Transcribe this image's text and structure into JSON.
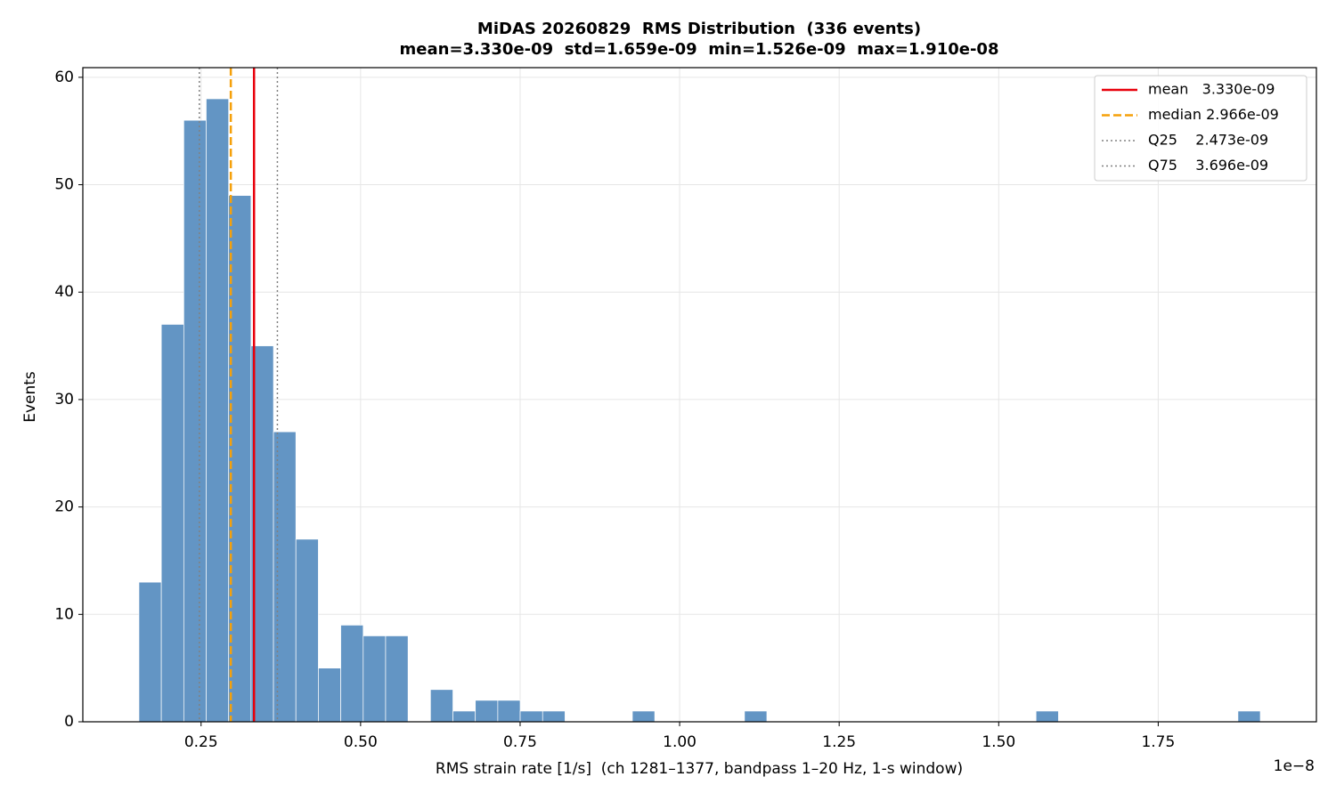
{
  "chart_data": {
    "type": "histogram",
    "title": "MiDAS 20260829  RMS Distribution  (336 events)",
    "subtitle": "mean=3.330e-09  std=1.659e-09  min=1.526e-09  max=1.910e-08",
    "x_label": "RMS strain rate [1/s]  (ch 1281–1377, bandpass 1–20 Hz, 1-s window)",
    "x_offset_label": "1e−8",
    "y_label": "Events",
    "color": "#6395c4",
    "bins": [
      0.1526,
      0.1877,
      0.2229,
      0.258,
      0.2932,
      0.3283,
      0.3635,
      0.3986,
      0.4338,
      0.4689,
      0.5041,
      0.5392,
      0.5744,
      0.6095,
      0.6447,
      0.6798,
      0.715,
      0.7501,
      0.7853,
      0.8204,
      0.8556,
      0.8907,
      0.9259,
      0.961,
      0.9962,
      1.0313,
      1.0665,
      1.1016,
      1.1367,
      1.1719,
      1.207,
      1.2422,
      1.2773,
      1.3125,
      1.3476,
      1.3828,
      1.4179,
      1.4531,
      1.4882,
      1.5234,
      1.5585,
      1.5937,
      1.6288,
      1.664,
      1.6991,
      1.7343,
      1.7694,
      1.8046,
      1.8397,
      1.8749,
      1.91
    ],
    "values": [
      13,
      37,
      56,
      58,
      49,
      35,
      27,
      17,
      5,
      9,
      8,
      8,
      0,
      3,
      1,
      2,
      2,
      1,
      1,
      0,
      0,
      0,
      1,
      0,
      0,
      0,
      0,
      1,
      0,
      0,
      0,
      0,
      0,
      0,
      0,
      0,
      0,
      0,
      0,
      0,
      1,
      0,
      0,
      0,
      0,
      0,
      0,
      0,
      0,
      1
    ],
    "lines": [
      {
        "label": "mean   3.330e-09",
        "value": 0.333,
        "color": "#e8000b",
        "style": "solid"
      },
      {
        "label": "median 2.966e-09",
        "value": 0.2966,
        "color": "#f5a00a",
        "style": "dashed"
      },
      {
        "label": "Q25    2.473e-09",
        "value": 0.2473,
        "color": "#808080",
        "style": "dotted"
      },
      {
        "label": "Q75    3.696e-09",
        "value": 0.3696,
        "color": "#808080",
        "style": "dotted"
      }
    ],
    "xlim": [
      0.0647,
      1.9979
    ],
    "xticks": [
      0.25,
      {
        "value": 0.5,
        "label": "0.50"
      },
      0.75,
      {
        "value": 1.0,
        "label": "1.00"
      },
      1.25,
      {
        "value": 1.5,
        "label": "1.50"
      },
      1.75
    ],
    "ylim": [
      0,
      60.9
    ],
    "yticks": [
      0,
      10,
      20,
      30,
      40,
      50,
      60
    ],
    "grid": true,
    "legend": "upper right"
  }
}
